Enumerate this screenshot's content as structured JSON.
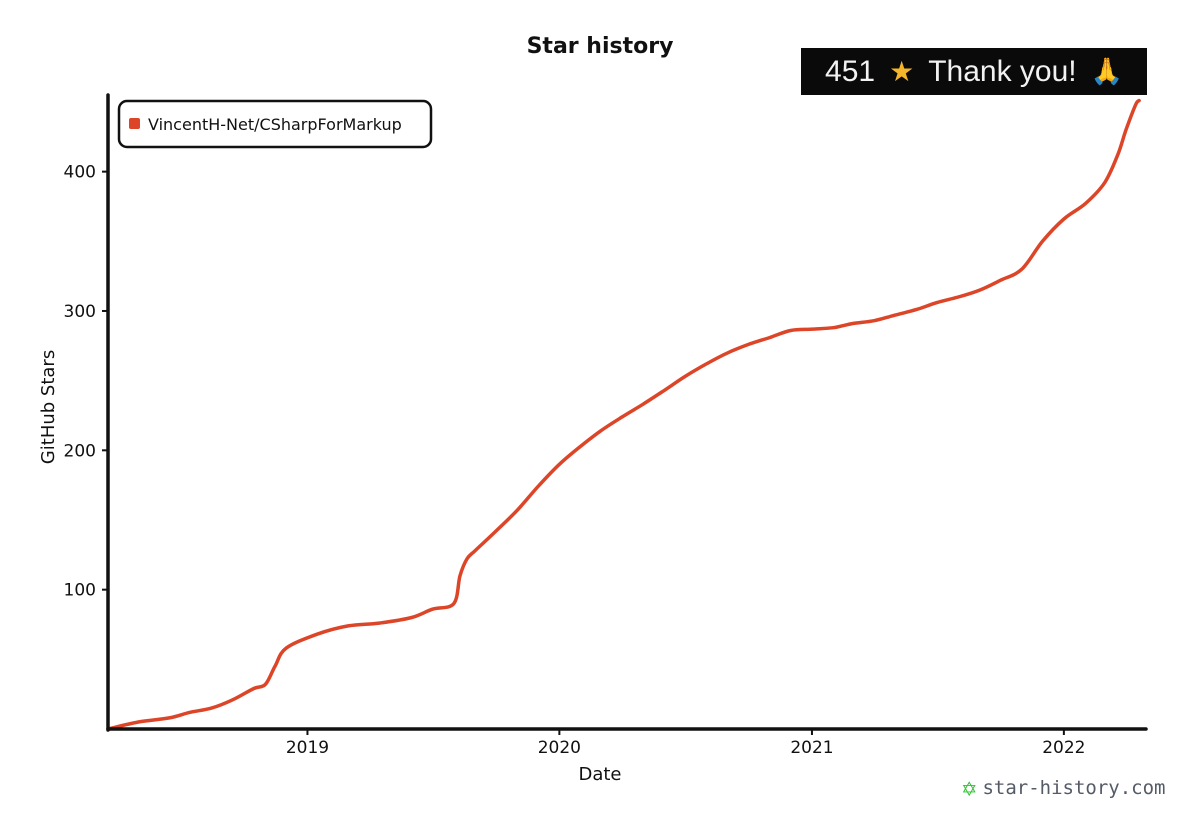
{
  "chart_data": {
    "type": "line",
    "title": "Star history",
    "xlabel": "Date",
    "ylabel": "GitHub Stars",
    "x_ticks": [
      "2019",
      "2020",
      "2021",
      "2022"
    ],
    "y_ticks": [
      100,
      200,
      300,
      400
    ],
    "xlim": [
      "2018-03-18",
      "2022-04-30"
    ],
    "ylim": [
      0,
      455
    ],
    "grid": false,
    "legend_position": "top-left",
    "series": [
      {
        "name": "VincentH-Net/CSharpForMarkup",
        "color": "#dd4528",
        "points": [
          [
            "2018-03-18",
            0
          ],
          [
            "2018-05-01",
            5
          ],
          [
            "2018-06-15",
            8
          ],
          [
            "2018-07-15",
            12
          ],
          [
            "2018-08-15",
            15
          ],
          [
            "2018-09-15",
            21
          ],
          [
            "2018-10-15",
            29
          ],
          [
            "2018-11-01",
            32
          ],
          [
            "2018-11-15",
            45
          ],
          [
            "2018-12-01",
            58
          ],
          [
            "2019-01-15",
            68
          ],
          [
            "2019-03-01",
            74
          ],
          [
            "2019-04-15",
            76
          ],
          [
            "2019-06-01",
            80
          ],
          [
            "2019-07-01",
            86
          ],
          [
            "2019-08-01",
            90
          ],
          [
            "2019-08-10",
            110
          ],
          [
            "2019-08-20",
            122
          ],
          [
            "2019-09-01",
            128
          ],
          [
            "2019-10-01",
            142
          ],
          [
            "2019-11-01",
            157
          ],
          [
            "2019-12-01",
            174
          ],
          [
            "2020-01-01",
            190
          ],
          [
            "2020-02-01",
            203
          ],
          [
            "2020-03-01",
            214
          ],
          [
            "2020-04-01",
            224
          ],
          [
            "2020-05-01",
            233
          ],
          [
            "2020-06-01",
            243
          ],
          [
            "2020-07-01",
            253
          ],
          [
            "2020-08-01",
            262
          ],
          [
            "2020-09-01",
            270
          ],
          [
            "2020-10-01",
            276
          ],
          [
            "2020-11-01",
            281
          ],
          [
            "2020-12-01",
            286
          ],
          [
            "2021-01-01",
            287
          ],
          [
            "2021-02-01",
            288
          ],
          [
            "2021-03-01",
            291
          ],
          [
            "2021-04-01",
            293
          ],
          [
            "2021-05-01",
            297
          ],
          [
            "2021-06-01",
            301
          ],
          [
            "2021-07-01",
            306
          ],
          [
            "2021-08-01",
            310
          ],
          [
            "2021-09-01",
            315
          ],
          [
            "2021-10-01",
            322
          ],
          [
            "2021-11-01",
            330
          ],
          [
            "2021-12-01",
            350
          ],
          [
            "2022-01-01",
            366
          ],
          [
            "2022-02-01",
            377
          ],
          [
            "2022-03-01",
            392
          ],
          [
            "2022-03-20",
            412
          ],
          [
            "2022-04-01",
            430
          ],
          [
            "2022-04-15",
            448
          ],
          [
            "2022-04-20",
            451
          ]
        ]
      }
    ]
  },
  "badge": {
    "count": "451",
    "star_icon": "star-icon",
    "text": "Thank you!",
    "hands_icon": "folded-hands-icon"
  },
  "branding": {
    "logo_icon": "star-history-logo-icon",
    "text": "star-history.com"
  }
}
